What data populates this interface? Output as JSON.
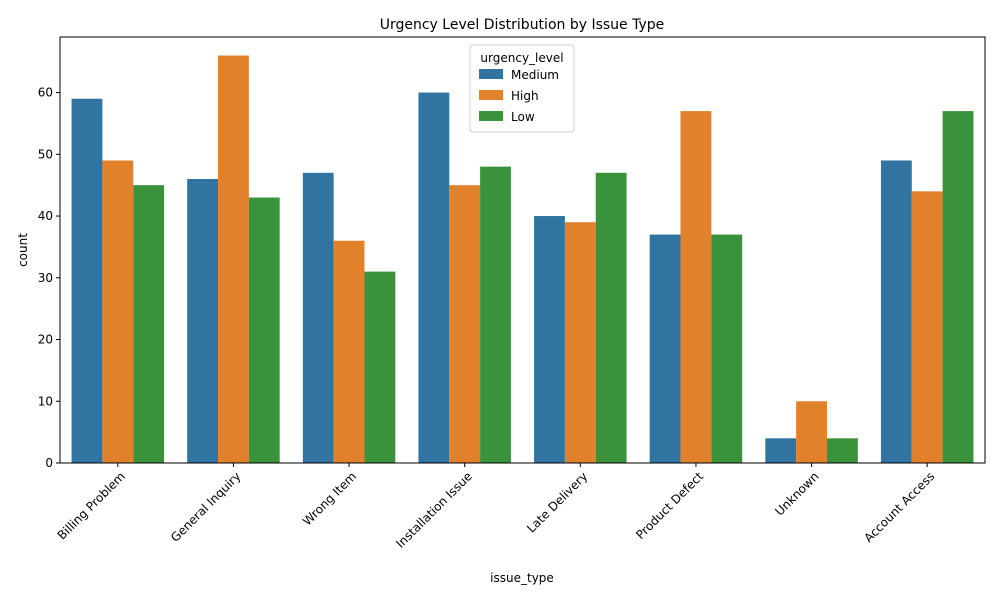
{
  "chart_data": {
    "type": "bar",
    "title": "Urgency Level Distribution by Issue Type",
    "xlabel": "issue_type",
    "ylabel": "count",
    "ylim": [
      0,
      69
    ],
    "yticks": [
      0,
      10,
      20,
      30,
      40,
      50,
      60
    ],
    "categories": [
      "Billing Problem",
      "General Inquiry",
      "Wrong Item",
      "Installation Issue",
      "Late Delivery",
      "Product Defect",
      "Unknown",
      "Account Access"
    ],
    "series": [
      {
        "name": "Medium",
        "color": "#3274a1",
        "values": [
          59,
          46,
          47,
          60,
          40,
          37,
          4,
          49
        ]
      },
      {
        "name": "High",
        "color": "#e1812c",
        "values": [
          49,
          66,
          36,
          45,
          39,
          57,
          10,
          44
        ]
      },
      {
        "name": "Low",
        "color": "#3a923a",
        "values": [
          45,
          43,
          31,
          48,
          47,
          37,
          4,
          57
        ]
      }
    ],
    "legend": {
      "title": "urgency_level",
      "placement": "top-center"
    },
    "grid": false
  }
}
